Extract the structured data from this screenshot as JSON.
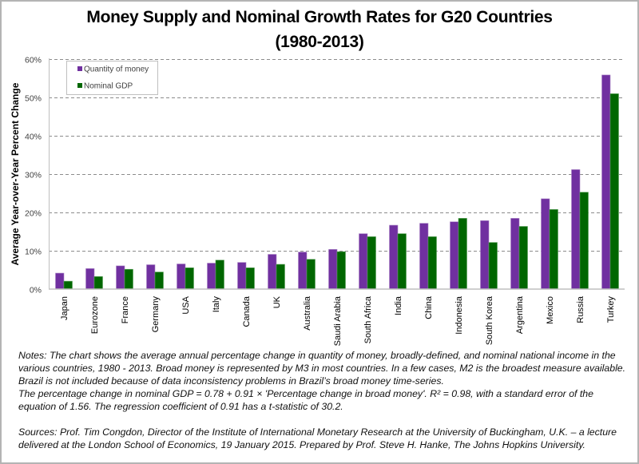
{
  "chart_data": {
    "type": "bar",
    "title": "Money Supply and Nominal Growth Rates for G20 Countries",
    "subtitle": "(1980-2013)",
    "xlabel": "",
    "ylabel": "Average Year-over-Year Percent Change",
    "ylim": [
      0,
      60
    ],
    "yticks": [
      "0%",
      "10%",
      "20%",
      "30%",
      "40%",
      "50%",
      "60%"
    ],
    "grid": true,
    "legend_position": "top-left",
    "categories": [
      "Japan",
      "Eurozone",
      "France",
      "Germany",
      "USA",
      "Italy",
      "Canada",
      "UK",
      "Australia",
      "Saudi Arabia",
      "South Africa",
      "India",
      "China",
      "Indonesia",
      "South Korea",
      "Argentina",
      "Mexico",
      "Russia",
      "Turkey"
    ],
    "series": [
      {
        "name": "Quantity of money",
        "color": "#7030A0",
        "values": [
          4.1,
          5.3,
          6.0,
          6.3,
          6.5,
          6.7,
          6.9,
          9.0,
          9.6,
          10.3,
          14.4,
          16.6,
          17.1,
          17.5,
          17.8,
          18.4,
          23.5,
          31.1,
          55.8
        ]
      },
      {
        "name": "Nominal GDP",
        "color": "#006600",
        "values": [
          2.0,
          3.2,
          5.1,
          4.4,
          5.5,
          7.5,
          5.5,
          6.4,
          7.7,
          9.7,
          13.6,
          14.4,
          13.6,
          18.4,
          12.1,
          16.3,
          20.7,
          25.2,
          50.9
        ]
      }
    ]
  },
  "notes": {
    "paragraph1": "Notes: The chart shows the average annual percentage change in quantity of money, broadly-defined, and nominal national income in the various countries, 1980 - 2013. Broad money is represented by M3 in most countries. In a few cases, M2 is the broadest measure available. Brazil is not included because of data inconsistency problems in Brazil’s broad money time-series.",
    "paragraph2": "The percentage change in nominal GDP = 0.78 + 0.91 × 'Percentage change in broad money'. R² = 0.98, with a standard error of the equation of 1.56. The regression coefficient of 0.91 has a t-statistic of 30.2.",
    "sources": "Sources: Prof. Tim Congdon, Director of the Institute of International Monetary Research at the University of Buckingham, U.K. – a lecture delivered at the London School of Economics, 19 January 2015. Prepared by Prof. Steve H. Hanke, The Johns Hopkins University."
  }
}
